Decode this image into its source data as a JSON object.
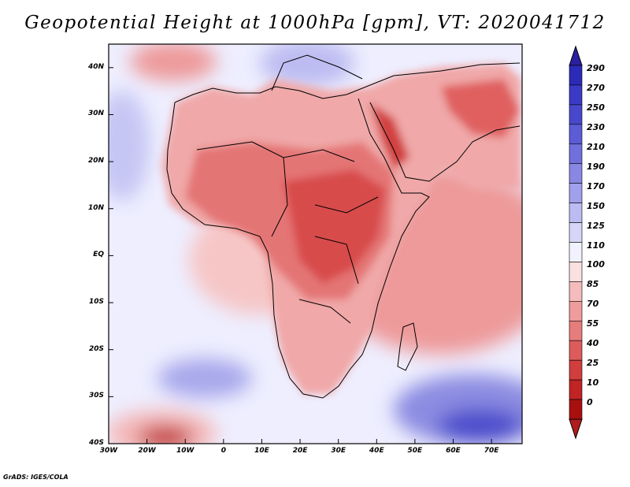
{
  "title": "Geopotential Height at 1000hPa [gpm], VT: 2020041712",
  "credit": "GrADS: IGES/COLA",
  "map": {
    "lon_range": [
      -30,
      78
    ],
    "lat_range": [
      -40,
      45
    ],
    "lat_ticks": [
      {
        "value": 40,
        "label": "40N"
      },
      {
        "value": 30,
        "label": "30N"
      },
      {
        "value": 20,
        "label": "20N"
      },
      {
        "value": 10,
        "label": "10N"
      },
      {
        "value": 0,
        "label": "EQ"
      },
      {
        "value": -10,
        "label": "10S"
      },
      {
        "value": -20,
        "label": "20S"
      },
      {
        "value": -30,
        "label": "30S"
      },
      {
        "value": -40,
        "label": "40S"
      }
    ],
    "lon_ticks": [
      {
        "value": -30,
        "label": "30W"
      },
      {
        "value": -20,
        "label": "20W"
      },
      {
        "value": -10,
        "label": "10W"
      },
      {
        "value": 0,
        "label": "0"
      },
      {
        "value": 10,
        "label": "10E"
      },
      {
        "value": 20,
        "label": "20E"
      },
      {
        "value": 30,
        "label": "30E"
      },
      {
        "value": 40,
        "label": "40E"
      },
      {
        "value": 50,
        "label": "50E"
      },
      {
        "value": 60,
        "label": "60E"
      },
      {
        "value": 70,
        "label": "70E"
      }
    ]
  },
  "colorbar": {
    "levels": [
      "290",
      "270",
      "250",
      "230",
      "210",
      "190",
      "170",
      "150",
      "125",
      "110",
      "100",
      "85",
      "70",
      "55",
      "40",
      "25",
      "10",
      "0"
    ],
    "colors": [
      "#2b2bb8",
      "#3a3ac4",
      "#4848cc",
      "#5c5cd6",
      "#7070dc",
      "#8888e4",
      "#a0a0ec",
      "#bcbcf2",
      "#d6d6f8",
      "#f2f2ff",
      "#fbe0e0",
      "#f4bcbc",
      "#ee9c9c",
      "#e67c7c",
      "#dc5c5c",
      "#d03e3e",
      "#c02424",
      "#a81010"
    ],
    "tip_top": "#2a1fa0",
    "tip_bottom": "#b01c1c"
  }
}
